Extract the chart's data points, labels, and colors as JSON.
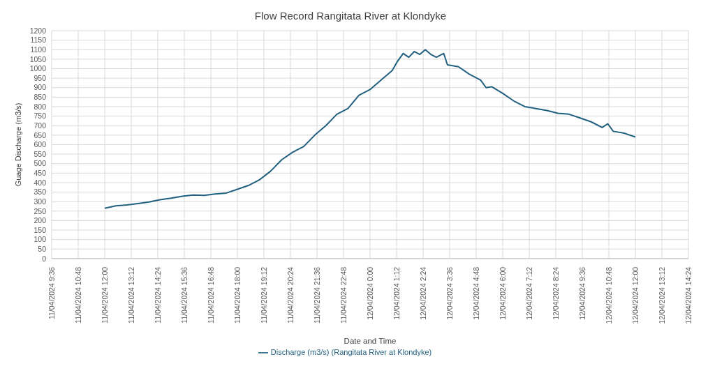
{
  "chart_data": {
    "type": "line",
    "title": "Flow Record Rangitata River at Klondyke",
    "xlabel": "Date and Time",
    "ylabel": "Guage Discharge (m3/s)",
    "x": [
      "2024-04-11T12:00",
      "2024-04-11T12:30",
      "2024-04-11T13:00",
      "2024-04-11T13:30",
      "2024-04-11T14:00",
      "2024-04-11T14:30",
      "2024-04-11T15:00",
      "2024-04-11T15:30",
      "2024-04-11T16:00",
      "2024-04-11T16:30",
      "2024-04-11T17:00",
      "2024-04-11T17:30",
      "2024-04-11T18:00",
      "2024-04-11T18:30",
      "2024-04-11T19:00",
      "2024-04-11T19:30",
      "2024-04-11T20:00",
      "2024-04-11T20:30",
      "2024-04-11T21:00",
      "2024-04-11T21:30",
      "2024-04-11T22:00",
      "2024-04-11T22:30",
      "2024-04-11T23:00",
      "2024-04-11T23:30",
      "2024-04-12T00:00",
      "2024-04-12T00:30",
      "2024-04-12T01:00",
      "2024-04-12T01:15",
      "2024-04-12T01:30",
      "2024-04-12T01:45",
      "2024-04-12T02:00",
      "2024-04-12T02:15",
      "2024-04-12T02:30",
      "2024-04-12T02:45",
      "2024-04-12T03:00",
      "2024-04-12T03:20",
      "2024-04-12T03:30",
      "2024-04-12T04:00",
      "2024-04-12T04:30",
      "2024-04-12T05:00",
      "2024-04-12T05:15",
      "2024-04-12T05:30",
      "2024-04-12T06:00",
      "2024-04-12T06:30",
      "2024-04-12T07:00",
      "2024-04-12T07:30",
      "2024-04-12T08:00",
      "2024-04-12T08:30",
      "2024-04-12T09:00",
      "2024-04-12T09:30",
      "2024-04-12T10:00",
      "2024-04-12T10:30",
      "2024-04-12T10:45",
      "2024-04-12T11:00",
      "2024-04-12T11:30",
      "2024-04-12T12:00"
    ],
    "series": [
      {
        "name": "Discharge (m3/s) (Rangitata River at Klondyke)",
        "color": "#215f7f",
        "values": [
          265,
          278,
          282,
          290,
          298,
          310,
          318,
          328,
          335,
          333,
          340,
          345,
          365,
          385,
          415,
          460,
          520,
          560,
          590,
          650,
          700,
          760,
          790,
          860,
          890,
          940,
          990,
          1040,
          1080,
          1060,
          1090,
          1075,
          1100,
          1075,
          1060,
          1080,
          1020,
          1010,
          970,
          940,
          900,
          905,
          870,
          830,
          800,
          790,
          780,
          765,
          760,
          740,
          720,
          690,
          710,
          670,
          660,
          640
        ]
      }
    ],
    "xlim": [
      "2024-04-11T09:36",
      "2024-04-12T14:24"
    ],
    "xticks": [
      {
        "value": "2024-04-11T09:36",
        "label": "11/04/2024 9:36"
      },
      {
        "value": "2024-04-11T10:48",
        "label": "11/04/2024 10:48"
      },
      {
        "value": "2024-04-11T12:00",
        "label": "11/04/2024 12:00"
      },
      {
        "value": "2024-04-11T13:12",
        "label": "11/04/2024 13:12"
      },
      {
        "value": "2024-04-11T14:24",
        "label": "11/04/2024 14:24"
      },
      {
        "value": "2024-04-11T15:36",
        "label": "11/04/2024 15:36"
      },
      {
        "value": "2024-04-11T16:48",
        "label": "11/04/2024 16:48"
      },
      {
        "value": "2024-04-11T18:00",
        "label": "11/04/2024 18:00"
      },
      {
        "value": "2024-04-11T19:12",
        "label": "11/04/2024 19:12"
      },
      {
        "value": "2024-04-11T20:24",
        "label": "11/04/2024 20:24"
      },
      {
        "value": "2024-04-11T21:36",
        "label": "11/04/2024 21:36"
      },
      {
        "value": "2024-04-11T22:48",
        "label": "11/04/2024 22:48"
      },
      {
        "value": "2024-04-12T00:00",
        "label": "12/04/2024 0:00"
      },
      {
        "value": "2024-04-12T01:12",
        "label": "12/04/2024 1:12"
      },
      {
        "value": "2024-04-12T02:24",
        "label": "12/04/2024 2:24"
      },
      {
        "value": "2024-04-12T03:36",
        "label": "12/04/2024 3:36"
      },
      {
        "value": "2024-04-12T04:48",
        "label": "12/04/2024 4:48"
      },
      {
        "value": "2024-04-12T06:00",
        "label": "12/04/2024 6:00"
      },
      {
        "value": "2024-04-12T07:12",
        "label": "12/04/2024 7:12"
      },
      {
        "value": "2024-04-12T08:24",
        "label": "12/04/2024 8:24"
      },
      {
        "value": "2024-04-12T09:36",
        "label": "12/04/2024 9:36"
      },
      {
        "value": "2024-04-12T10:48",
        "label": "12/04/2024 10:48"
      },
      {
        "value": "2024-04-12T12:00",
        "label": "12/04/2024 12:00"
      },
      {
        "value": "2024-04-12T13:12",
        "label": "12/04/2024 13:12"
      },
      {
        "value": "2024-04-12T14:24",
        "label": "12/04/2024 14:24"
      }
    ],
    "ylim": [
      0,
      1200
    ],
    "yticks": [
      0,
      50,
      100,
      150,
      200,
      250,
      300,
      350,
      400,
      450,
      500,
      550,
      600,
      650,
      700,
      750,
      800,
      850,
      900,
      950,
      1000,
      1050,
      1100,
      1150,
      1200
    ],
    "grid": true,
    "legend": "bottom",
    "marker": "none",
    "line_style": "solid"
  }
}
